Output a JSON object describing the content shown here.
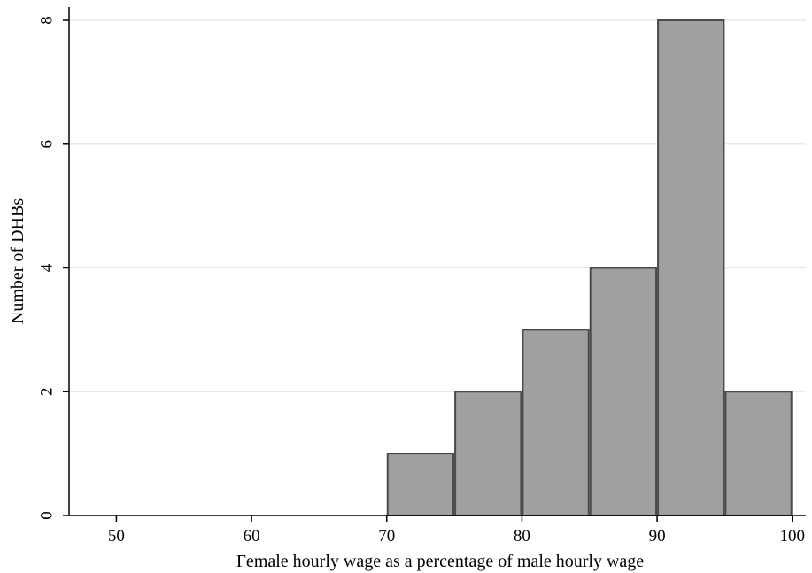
{
  "chart_data": {
    "type": "bar",
    "title": "",
    "xlabel": "Female hourly wage as a percentage of male hourly wage",
    "ylabel": "Number of DHBs",
    "xlim": [
      46.5,
      101
    ],
    "ylim": [
      0,
      8
    ],
    "xticks": [
      50,
      60,
      70,
      80,
      90,
      100
    ],
    "yticks": [
      0,
      2,
      4,
      6,
      8
    ],
    "grid": true,
    "bins": [
      {
        "start": 70,
        "end": 75,
        "count": 1
      },
      {
        "start": 75,
        "end": 80,
        "count": 2
      },
      {
        "start": 80,
        "end": 85,
        "count": 3
      },
      {
        "start": 85,
        "end": 90,
        "count": 4
      },
      {
        "start": 90,
        "end": 95,
        "count": 8
      },
      {
        "start": 95,
        "end": 100,
        "count": 2
      }
    ],
    "colors": {
      "bar_fill": "#a0a0a0",
      "bar_stroke": "#4a4a4a",
      "grid": "#e3ecec",
      "axis": "#000000"
    }
  }
}
